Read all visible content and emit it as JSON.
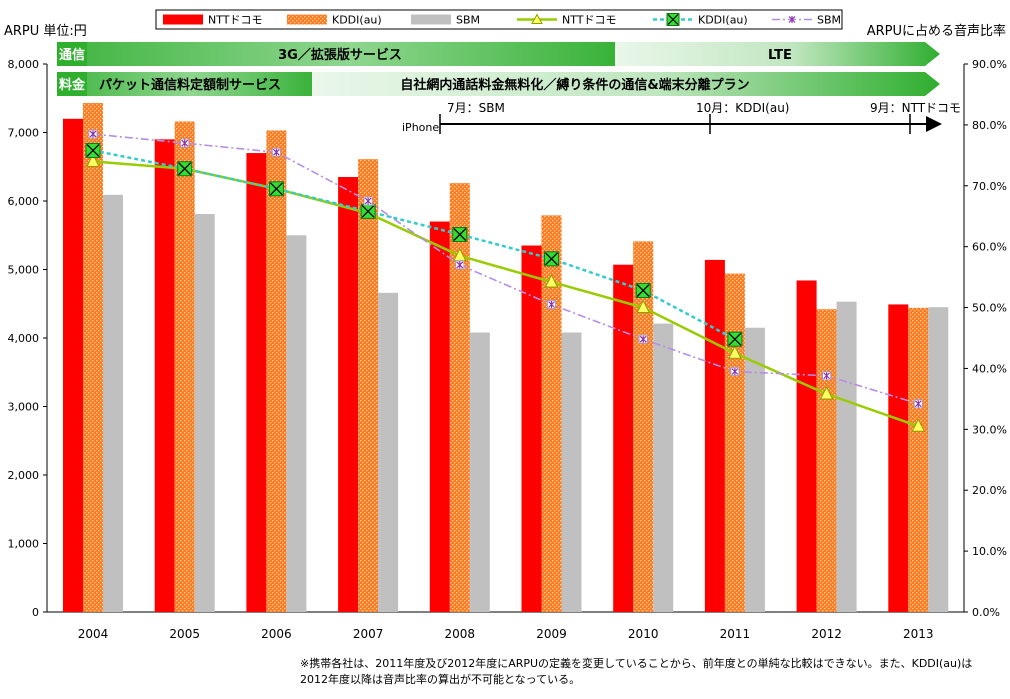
{
  "axis_titles": {
    "left": "ARPU 単位:円",
    "right": "ARPUに占める音声比率"
  },
  "legend": [
    {
      "label": "NTTドコモ",
      "kind": "bar-solid",
      "color": "#ff0000"
    },
    {
      "label": "KDDI(au)",
      "kind": "bar-hatch",
      "color": "#ff7a1a"
    },
    {
      "label": "SBM",
      "kind": "bar-solid",
      "color": "#c0c0c0"
    },
    {
      "label": "NTTドコモ",
      "kind": "line-triangle",
      "color": "#99cc00"
    },
    {
      "label": "KDDI(au)",
      "kind": "line-box",
      "color": "#33cccc"
    },
    {
      "label": "SBM",
      "kind": "line-star",
      "color": "#b48ee6"
    }
  ],
  "bands": {
    "row1_label": "通信",
    "row1_a": "3G／拡張版サービス",
    "row1_b": "LTE",
    "row2_label": "料金",
    "row2_a": "パケット通信料定額制サービス",
    "row2_b": "自社網内通話料金無料化／縛り条件の通信&端末分離プラン"
  },
  "iphone": {
    "label": "iPhone",
    "events": [
      {
        "year": "2008",
        "label": "7月：SBM"
      },
      {
        "year": "2011",
        "label": "10月：KDDI(au)"
      },
      {
        "year": "2013",
        "label": "9月：NTTドコモ"
      }
    ]
  },
  "footnote": "※携帯各社は、2011年度及び2012年度にARPUの定義を変更していることから、前年度との単純な比較はできない。また、KDDI(au)は2012年度以降は音声比率の算出が不可能となっている。",
  "colors": {
    "docomo": "#ff0000",
    "kddi": "#ff7a1a",
    "sbm": "#c0c0c0",
    "docomo_line": "#99cc00",
    "kddi_line": "#33cccc",
    "sbm_line": "#b48ee6",
    "band_green": "#2eaf2e"
  },
  "chart_data": {
    "type": "bar",
    "categories": [
      "2004",
      "2005",
      "2006",
      "2007",
      "2008",
      "2009",
      "2010",
      "2011",
      "2012",
      "2013"
    ],
    "y_left": {
      "min": 0,
      "max": 8000,
      "step": 1000,
      "ticks": [
        "0",
        "1,000",
        "2,000",
        "3,000",
        "4,000",
        "5,000",
        "6,000",
        "7,000",
        "8,000"
      ]
    },
    "y_right": {
      "min": 0,
      "max": 90,
      "step": 10,
      "ticks": [
        "0.0%",
        "10.0%",
        "20.0%",
        "30.0%",
        "40.0%",
        "50.0%",
        "60.0%",
        "70.0%",
        "80.0%",
        "90.0%"
      ]
    },
    "series": [
      {
        "name": "NTTドコモ",
        "type": "bar",
        "axis": "left",
        "values": [
          7200,
          6900,
          6700,
          6350,
          5700,
          5350,
          5070,
          5140,
          4840,
          4490
        ]
      },
      {
        "name": "KDDI(au)",
        "type": "bar",
        "axis": "left",
        "values": [
          7430,
          7160,
          7030,
          6610,
          6260,
          5790,
          5410,
          4940,
          4420,
          4440
        ]
      },
      {
        "name": "SBM",
        "type": "bar",
        "axis": "left",
        "values": [
          6090,
          5810,
          5500,
          4660,
          4080,
          4080,
          4210,
          4150,
          4530,
          4450
        ]
      },
      {
        "name": "NTTドコモ",
        "type": "line",
        "axis": "right",
        "values": [
          74.0,
          72.8,
          69.5,
          65.5,
          58.5,
          54.2,
          50.0,
          42.5,
          35.8,
          30.5
        ]
      },
      {
        "name": "KDDI(au)",
        "type": "line",
        "axis": "right",
        "values": [
          75.8,
          72.8,
          69.5,
          65.8,
          62.0,
          58.0,
          52.8,
          44.8,
          null,
          null
        ]
      },
      {
        "name": "SBM",
        "type": "line",
        "axis": "right",
        "values": [
          78.5,
          77.0,
          75.5,
          67.5,
          57.0,
          50.5,
          44.8,
          39.5,
          38.8,
          34.2
        ]
      }
    ],
    "grid": false,
    "legend_position": "top"
  }
}
